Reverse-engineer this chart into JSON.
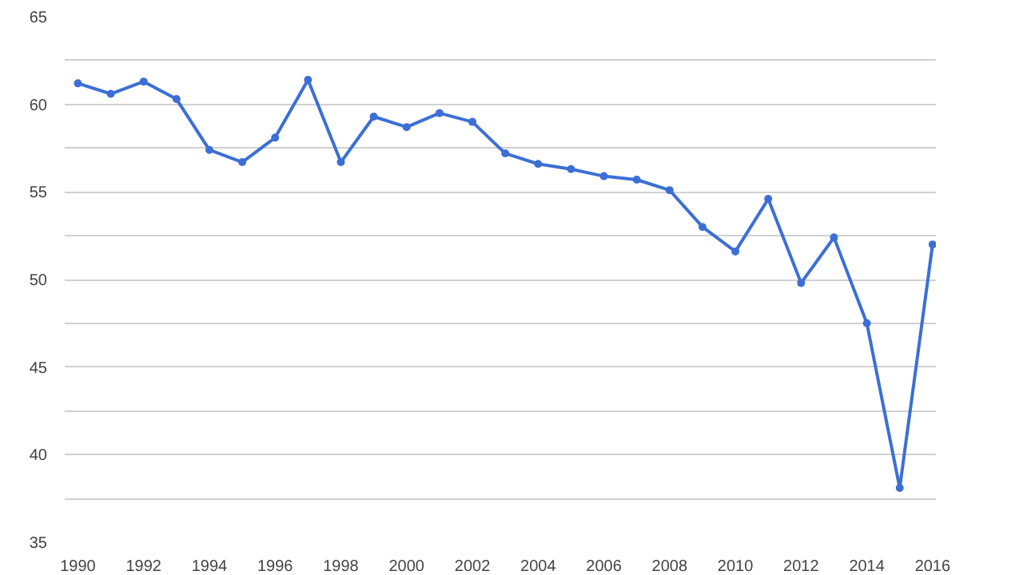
{
  "chart_data": {
    "type": "line",
    "x": [
      1990,
      1991,
      1992,
      1993,
      1994,
      1995,
      1996,
      1997,
      1998,
      1999,
      2000,
      2001,
      2002,
      2003,
      2004,
      2005,
      2006,
      2007,
      2008,
      2009,
      2010,
      2011,
      2012,
      2013,
      2014,
      2015,
      2016
    ],
    "series": [
      {
        "color": "#3c6fd6",
        "values": [
          61.2,
          60.6,
          61.3,
          60.3,
          57.4,
          56.7,
          58.1,
          61.4,
          56.7,
          59.3,
          58.7,
          59.5,
          59.0,
          57.2,
          56.6,
          56.3,
          55.9,
          55.7,
          55.1,
          53.0,
          51.6,
          54.6,
          49.8,
          52.4,
          47.5,
          38.1,
          52.0
        ]
      }
    ],
    "xlim": [
      1989.6,
      2016.1
    ],
    "xticks": [
      1990,
      1992,
      1994,
      1996,
      1998,
      2000,
      2002,
      2004,
      2006,
      2008,
      2010,
      2012,
      2014,
      2016
    ],
    "ylim": [
      35,
      65
    ],
    "yticks": [
      35,
      {
        "value": 37.5,
        "label": null
      },
      40,
      {
        "value": 42.5,
        "label": null
      },
      45,
      {
        "value": 47.5,
        "label": null
      },
      50,
      {
        "value": 52.5,
        "label": null
      },
      55,
      {
        "value": 57.5,
        "label": null
      },
      60,
      {
        "value": 62.5,
        "label": null
      },
      65
    ],
    "grid": "y",
    "marker": "circle",
    "line_style": "solid"
  }
}
